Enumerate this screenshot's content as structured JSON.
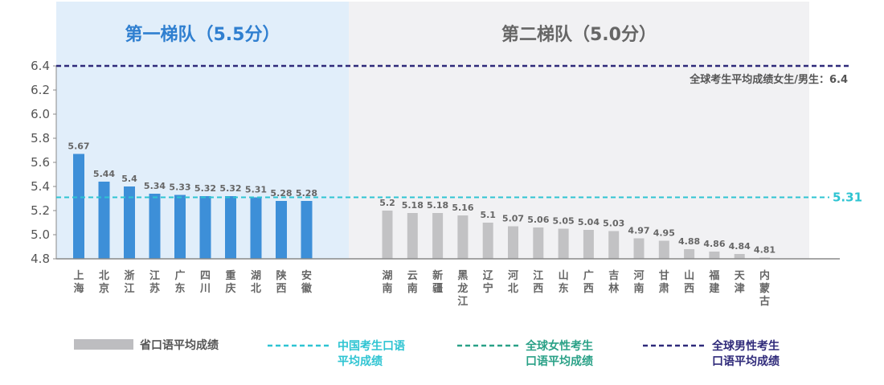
{
  "chart_data": {
    "type": "bar",
    "ylim": [
      4.8,
      6.4
    ],
    "yticks": [
      "6.4",
      "6.2",
      "6.0",
      "5.8",
      "5.6",
      "5.4",
      "5.2",
      "5.0",
      "4.8"
    ],
    "groups": [
      {
        "title": "第一梯队（5.5分）",
        "categories": [
          "上海",
          "北京",
          "浙江",
          "江苏",
          "广东",
          "四川",
          "重庆",
          "湖北",
          "陕西",
          "安徽"
        ],
        "values": [
          5.67,
          5.44,
          5.4,
          5.34,
          5.33,
          5.32,
          5.32,
          5.31,
          5.28,
          5.28
        ],
        "labels": [
          "5.67",
          "5.44",
          "5.4",
          "5.34",
          "5.33",
          "5.32",
          "5.32",
          "5.31",
          "5.28",
          "5.28"
        ]
      },
      {
        "title": "第二梯队（5.0分）",
        "categories": [
          "湖南",
          "云南",
          "新疆",
          "黑龙江",
          "辽宁",
          "河北",
          "江西",
          "山东",
          "广西",
          "吉林",
          "河南",
          "甘肃",
          "山西",
          "福建",
          "天津",
          "内蒙古"
        ],
        "values": [
          5.2,
          5.18,
          5.18,
          5.16,
          5.1,
          5.07,
          5.06,
          5.05,
          5.04,
          5.03,
          4.97,
          4.95,
          4.88,
          4.86,
          4.84,
          4.81
        ],
        "labels": [
          "5.2",
          "5.18",
          "5.18",
          "5.16",
          "5.1",
          "5.07",
          "5.06",
          "5.05",
          "5.04",
          "5.03",
          "4.97",
          "4.95",
          "4.88",
          "4.86",
          "4.84",
          "4.81"
        ]
      }
    ],
    "reference_lines": [
      {
        "value": 6.4,
        "label": "全球考生平均成绩女生/男生：6.4",
        "color": "#2f2a7a"
      },
      {
        "value": 5.31,
        "label": "5.31",
        "color": "#2ec4d2"
      }
    ],
    "legend": [
      {
        "type": "bar",
        "label": "省口语平均成绩",
        "color": "#bdbdc0",
        "text_color": "#555555"
      },
      {
        "type": "dash",
        "label": "中国考生口语平均成绩",
        "color": "#2ec4d2",
        "text_color": "#2ec4d2"
      },
      {
        "type": "dash",
        "label": "全球女性考生口语平均成绩",
        "color": "#2aa187",
        "text_color": "#2aa187"
      },
      {
        "type": "dash",
        "label": "全球男性考生口语平均成绩",
        "color": "#2f2a7a",
        "text_color": "#2f2a7a"
      }
    ],
    "colors": {
      "tier1_bar": "#3d8fd8",
      "tier2_bar": "#c2c2c4",
      "tier1_bg": "#e1eefa",
      "tier2_bg": "#f1f1f3",
      "tier1_title": "#2f7fd0",
      "tier2_title": "#666666",
      "axis": "#888888"
    }
  }
}
